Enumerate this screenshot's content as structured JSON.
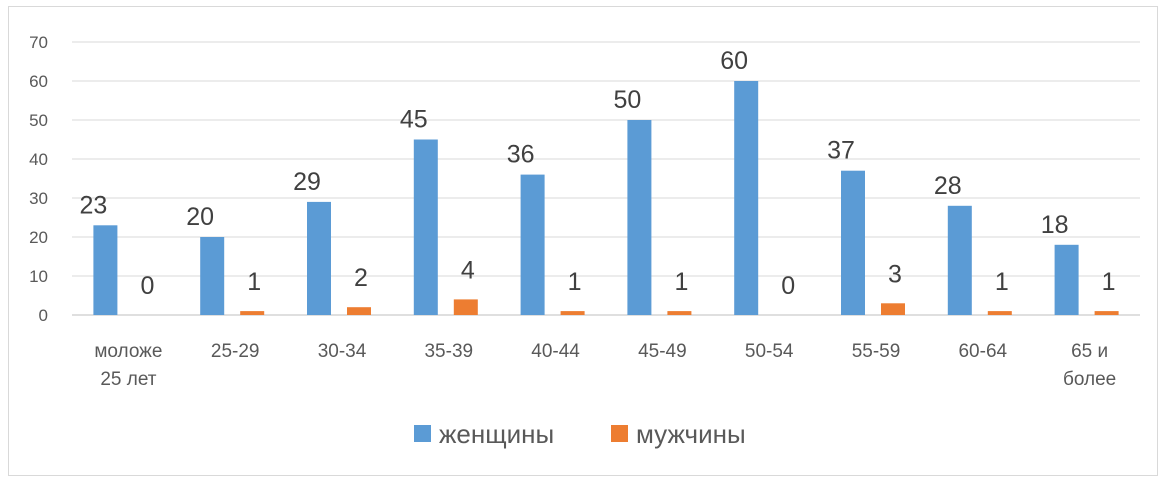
{
  "chart_data": {
    "type": "bar",
    "title": "",
    "xlabel": "",
    "ylabel": "",
    "ylim": [
      0,
      70
    ],
    "yticks": [
      0,
      10,
      20,
      30,
      40,
      50,
      60,
      70
    ],
    "grid": true,
    "legend_position": "bottom",
    "categories": [
      [
        "моложе",
        "25 лет"
      ],
      [
        "25-29"
      ],
      [
        "30-34"
      ],
      [
        "35-39"
      ],
      [
        "40-44"
      ],
      [
        "45-49"
      ],
      [
        "50-54"
      ],
      [
        "55-59"
      ],
      [
        "60-64"
      ],
      [
        "65 и",
        "более"
      ]
    ],
    "series": [
      {
        "name": "женщины",
        "color": "#5b9bd5",
        "values": [
          23,
          20,
          29,
          45,
          36,
          50,
          60,
          37,
          28,
          18
        ]
      },
      {
        "name": "мужчины",
        "color": "#ed7d31",
        "values": [
          0,
          1,
          2,
          4,
          1,
          1,
          0,
          3,
          1,
          1
        ]
      }
    ],
    "gridline_color": "#d9d9d9",
    "axis_color": "#bfbfbf"
  }
}
